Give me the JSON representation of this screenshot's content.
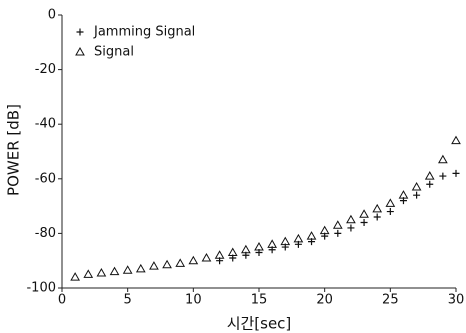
{
  "chart_data": {
    "type": "scatter",
    "x_label": "시간[sec]",
    "y_label": "POWER [dB]",
    "x": [
      1,
      2,
      3,
      4,
      5,
      6,
      7,
      8,
      9,
      10,
      11,
      12,
      13,
      14,
      15,
      16,
      17,
      18,
      19,
      20,
      21,
      22,
      23,
      24,
      25,
      26,
      27,
      28,
      29,
      30
    ],
    "series": [
      {
        "name": "Jamming Signal",
        "marker": "plus",
        "color": "#111111",
        "values": [
          null,
          null,
          null,
          null,
          null,
          null,
          null,
          null,
          null,
          null,
          null,
          -90,
          -89,
          -88,
          -87,
          -86,
          -85,
          -84,
          -83,
          -81,
          -80,
          -78,
          -76,
          -74,
          -72,
          -68,
          -66,
          -62,
          -59,
          -58
        ]
      },
      {
        "name": "Signal",
        "marker": "triangle",
        "color": "#111111",
        "values": [
          -96,
          -95,
          -94.5,
          -94,
          -93.5,
          -93,
          -92,
          -91.5,
          -91,
          -90,
          -89,
          -88,
          -87,
          -86,
          -85,
          -84,
          -83,
          -82,
          -81,
          -79,
          -77,
          -75,
          -73,
          -71,
          -69,
          -66,
          -63,
          -59,
          -53,
          -46
        ]
      }
    ],
    "xlim": [
      0,
      30
    ],
    "ylim": [
      -100,
      0
    ],
    "xticks": [
      0,
      5,
      10,
      15,
      20,
      25,
      30
    ],
    "yticks": [
      0,
      -20,
      -40,
      -60,
      -80,
      -100
    ],
    "legend": "upper left"
  }
}
